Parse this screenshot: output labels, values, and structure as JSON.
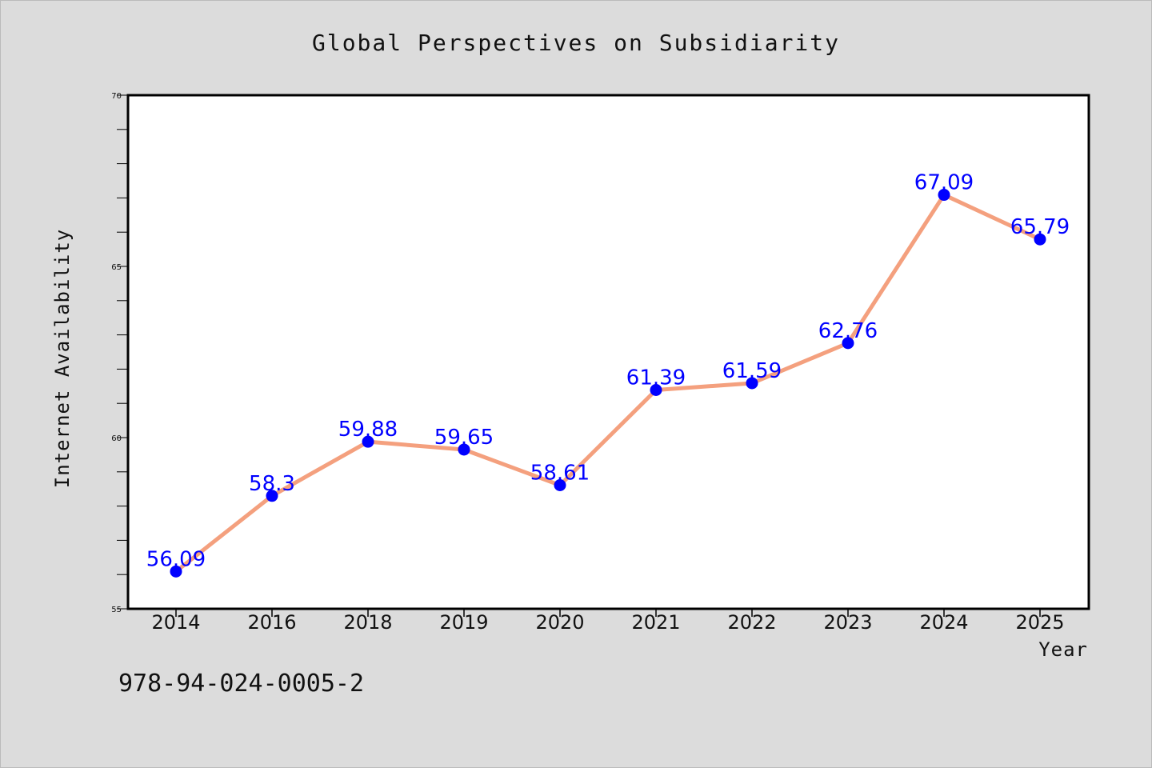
{
  "chart_data": {
    "type": "line",
    "title": "Global Perspectives on Subsidiarity",
    "xlabel": "Year",
    "ylabel": "Internet Availability",
    "categories": [
      "2014",
      "2016",
      "2018",
      "2019",
      "2020",
      "2021",
      "2022",
      "2023",
      "2024",
      "2025"
    ],
    "values": [
      56.09,
      58.3,
      59.88,
      59.65,
      58.61,
      61.39,
      61.59,
      62.76,
      67.09,
      65.79
    ],
    "data_labels": [
      "56.09",
      "58.3",
      "59.88",
      "59.65",
      "58.61",
      "61.39",
      "61.59",
      "62.76",
      "67.09",
      "65.79"
    ],
    "ylim": [
      55,
      70
    ],
    "yticks": [
      "55",
      "60",
      "65",
      "70"
    ],
    "y_minor_step": 1,
    "grid": false,
    "legend": "none",
    "colors": {
      "line": "#f4a07e",
      "marker": "#0000ff",
      "label": "#0000ff",
      "background": "#dcdcdc",
      "plot_background": "#ffffff"
    }
  },
  "footer": {
    "isbn": "978-94-024-0005-2"
  }
}
